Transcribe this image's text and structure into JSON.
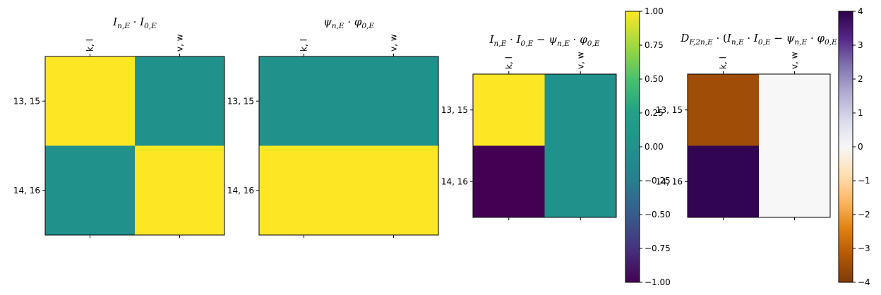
{
  "chart_data": [
    {
      "type": "heatmap",
      "title": "I_{n,E}·I_{0,E}",
      "title_parts": [
        [
          "I",
          "t"
        ],
        [
          "n,E",
          "s"
        ],
        [
          " · ",
          "r"
        ],
        [
          "I",
          "t"
        ],
        [
          "0,E",
          "s"
        ]
      ],
      "x_tick_labels": [
        "k, l",
        "v, w"
      ],
      "y_tick_labels": [
        "13, 15",
        "14, 16"
      ],
      "values": [
        [
          1,
          0
        ],
        [
          0,
          1
        ]
      ],
      "colormap": "viridis",
      "vmin": -1,
      "vmax": 1
    },
    {
      "type": "heatmap",
      "title": "ψ_{n,E}·φ_{0,E}",
      "title_parts": [
        [
          "ψ",
          "t"
        ],
        [
          "n,E",
          "s"
        ],
        [
          " · ",
          "r"
        ],
        [
          "φ",
          "t"
        ],
        [
          "0,E",
          "s"
        ]
      ],
      "x_tick_labels": [
        "k, l",
        "v, w"
      ],
      "y_tick_labels": [
        "13, 15",
        "14, 16"
      ],
      "values": [
        [
          0,
          0
        ],
        [
          1,
          1
        ]
      ],
      "colormap": "viridis",
      "vmin": -1,
      "vmax": 1
    },
    {
      "type": "heatmap",
      "title": "I_{n,E}·I_{0,E} − ψ_{n,E}·φ_{0,E}",
      "title_parts": [
        [
          "I",
          "t"
        ],
        [
          "n,E",
          "s"
        ],
        [
          " · ",
          "r"
        ],
        [
          "I",
          "t"
        ],
        [
          "0,E",
          "s"
        ],
        [
          " − ",
          "r"
        ],
        [
          "ψ",
          "t"
        ],
        [
          "n,E",
          "s"
        ],
        [
          " · ",
          "r"
        ],
        [
          "φ",
          "t"
        ],
        [
          "0,E",
          "s"
        ]
      ],
      "x_tick_labels": [
        "k, l",
        "v, w"
      ],
      "y_tick_labels": [
        "13, 15",
        "14, 16"
      ],
      "values": [
        [
          1,
          0
        ],
        [
          -1,
          0
        ]
      ],
      "colormap": "viridis",
      "vmin": -1,
      "vmax": 1,
      "colorbar_ticks": [
        "1.00",
        "0.75",
        "0.50",
        "0.25",
        "0.00",
        "−0.25",
        "−0.50",
        "−0.75",
        "−1.00"
      ],
      "colorbar_tick_values": [
        1,
        0.75,
        0.5,
        0.25,
        0,
        -0.25,
        -0.5,
        -0.75,
        -1
      ]
    },
    {
      "type": "heatmap",
      "title": "D_{F,2n,E}·(I_{n,E}·I_{0,E} − ψ_{n,E}·φ_{0,E}",
      "title_parts": [
        [
          "D",
          "t"
        ],
        [
          "F,2n,E",
          "s"
        ],
        [
          " · (",
          "r"
        ],
        [
          "I",
          "t"
        ],
        [
          "n,E",
          "s"
        ],
        [
          " · ",
          "r"
        ],
        [
          "I",
          "t"
        ],
        [
          "0,E",
          "s"
        ],
        [
          " − ",
          "r"
        ],
        [
          "ψ",
          "t"
        ],
        [
          "n,E",
          "s"
        ],
        [
          " · ",
          "r"
        ],
        [
          "φ",
          "t"
        ],
        [
          "0,E",
          "s"
        ]
      ],
      "x_tick_labels": [
        "k, l",
        "v, w"
      ],
      "y_tick_labels": [
        "13, 15",
        "14, 16"
      ],
      "values": [
        [
          -3.5,
          0
        ],
        [
          3.9,
          0
        ]
      ],
      "colormap": "PuOr",
      "vmin": -4,
      "vmax": 4,
      "colorbar_ticks": [
        "4",
        "3",
        "2",
        "1",
        "0",
        "−1",
        "−2",
        "−3",
        "−4"
      ],
      "colorbar_tick_values": [
        4,
        3,
        2,
        1,
        0,
        -1,
        -2,
        -3,
        -4
      ]
    }
  ]
}
